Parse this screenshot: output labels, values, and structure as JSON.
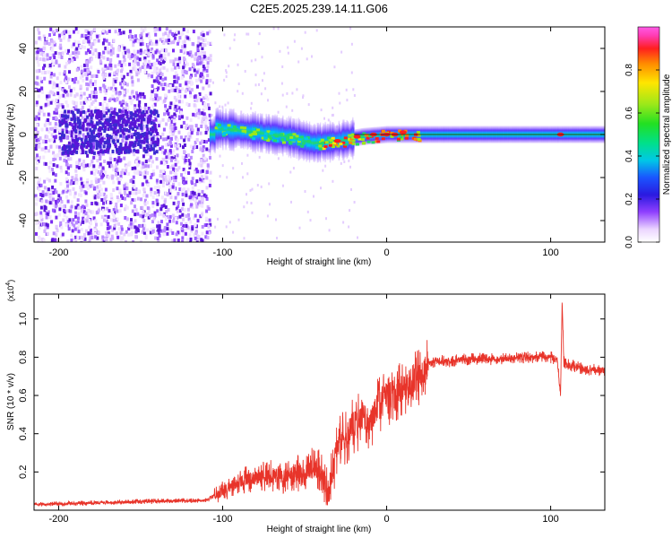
{
  "title": "C2E5.2025.239.14.11.G06",
  "chart_data": [
    {
      "type": "heatmap",
      "xlabel": "Height of straight line (km)",
      "ylabel": "Frequency (Hz)",
      "xlim": [
        -215,
        133
      ],
      "ylim": [
        -50,
        50
      ],
      "xticks": [
        -200,
        -100,
        0,
        100
      ],
      "yticks": [
        -40,
        -20,
        0,
        20,
        40
      ],
      "colorbar": {
        "label": "Normalized spectral amplitude",
        "range": [
          0.0,
          1.0
        ],
        "ticks": [
          0.0,
          0.2,
          0.4,
          0.6,
          0.8
        ]
      },
      "description_values": {
        "noise_region_x": [
          -215,
          -108
        ],
        "signal_band_center_hz": [
          {
            "x": -105,
            "y": 3
          },
          {
            "x": -80,
            "y": 1
          },
          {
            "x": -60,
            "y": -1
          },
          {
            "x": -45,
            "y": -4
          },
          {
            "x": -30,
            "y": -3
          },
          {
            "x": -15,
            "y": -1
          },
          {
            "x": 0,
            "y": 0
          },
          {
            "x": 50,
            "y": 0
          },
          {
            "x": 130,
            "y": 0
          }
        ]
      }
    },
    {
      "type": "line",
      "xlabel": "Height of straight line (km)",
      "ylabel": "SNR (10 * v/v)",
      "ylabel_exponent": "(x10",
      "ylabel_exponent_power": "4",
      "ylabel_exponent_close": ")",
      "xlim": [
        -215,
        133
      ],
      "ylim": [
        0,
        1.13
      ],
      "xticks": [
        -200,
        -100,
        0,
        100
      ],
      "yticks": [
        0.2,
        0.4,
        0.6,
        0.8,
        1.0
      ],
      "series": [
        {
          "name": "SNR",
          "color": "#e8342a",
          "x": [
            -215,
            -170,
            -130,
            -110,
            -100,
            -90,
            -80,
            -70,
            -60,
            -50,
            -45,
            -40,
            -35,
            -30,
            -25,
            -20,
            -15,
            -10,
            -5,
            0,
            5,
            10,
            15,
            20,
            25,
            30,
            40,
            50,
            60,
            70,
            80,
            90,
            100,
            104,
            106,
            107,
            108,
            110,
            120,
            133
          ],
          "values": [
            0.03,
            0.04,
            0.05,
            0.05,
            0.1,
            0.15,
            0.17,
            0.18,
            0.18,
            0.2,
            0.22,
            0.2,
            0.08,
            0.35,
            0.38,
            0.45,
            0.48,
            0.47,
            0.55,
            0.6,
            0.6,
            0.64,
            0.65,
            0.7,
            0.76,
            0.78,
            0.78,
            0.79,
            0.79,
            0.79,
            0.8,
            0.8,
            0.8,
            0.78,
            0.6,
            1.1,
            0.78,
            0.76,
            0.74,
            0.73
          ]
        }
      ]
    }
  ]
}
